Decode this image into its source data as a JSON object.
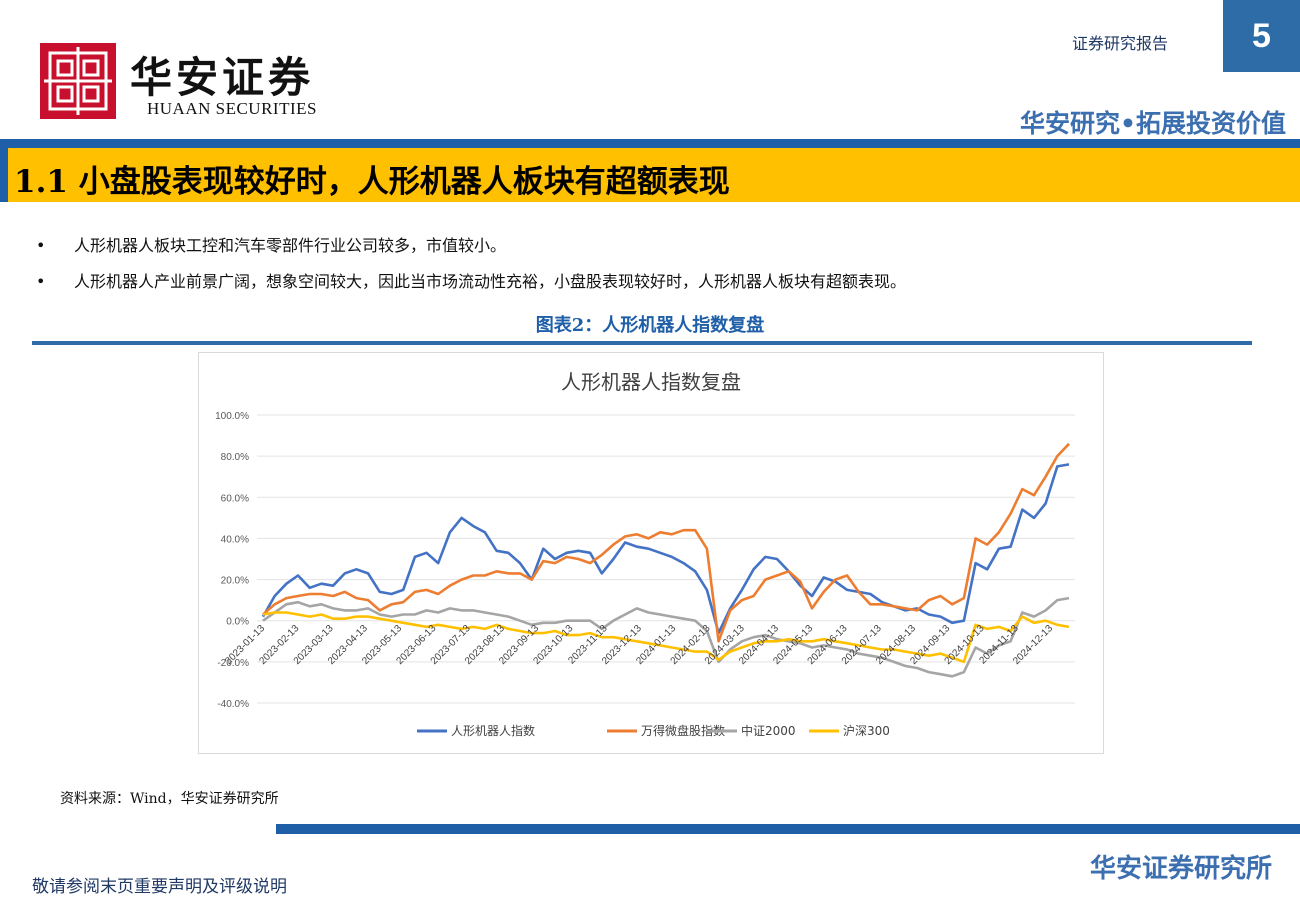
{
  "header": {
    "brand_cn": "华安证券",
    "brand_en": "HUAAN SECURITIES",
    "report_type": "证券研究报告",
    "page_number": "5",
    "slogan": "华安研究•拓展投资价值"
  },
  "section": {
    "title": "1.1 小盘股表现较好时，人形机器人板块有超额表现"
  },
  "bullets": [
    "人形机器人板块工控和汽车零部件行业公司较多，市值较小。",
    "人形机器人产业前景广阔，想象空间较大，因此当市场流动性充裕，小盘股表现较好时，人形机器人板块有超额表现。"
  ],
  "figure": {
    "caption": "图表2：人形机器人指数复盘",
    "source": "资料来源：Wind，华安证券研究所"
  },
  "chart_data": {
    "type": "line",
    "title": "人形机器人指数复盘",
    "y_tick_labels": [
      "100.0%",
      "80.0%",
      "60.0%",
      "40.0%",
      "20.0%",
      "0.0%",
      "-20.0%",
      "-40.0%"
    ],
    "x_tick_labels": [
      "2023-01-13",
      "2023-02-13",
      "2023-03-13",
      "2023-04-13",
      "2023-05-13",
      "2023-06-13",
      "2023-07-13",
      "2023-08-13",
      "2023-09-13",
      "2023-10-13",
      "2023-11-13",
      "2023-12-13",
      "2024-01-13",
      "2024-02-13",
      "2024-03-13",
      "2024-04-13",
      "2024-05-13",
      "2024-06-13",
      "2024-07-13",
      "2024-08-13",
      "2024-09-13",
      "2024-10-13",
      "2024-11-13",
      "2024-12-13"
    ],
    "ylim": [
      -40,
      100
    ],
    "grid": true,
    "legend": "bottom",
    "series": [
      {
        "name": "人形机器人指数",
        "color": "#4472c4",
        "values": [
          2,
          12,
          18,
          22,
          16,
          18,
          17,
          23,
          25,
          23,
          14,
          13,
          15,
          31,
          33,
          28,
          43,
          50,
          46,
          43,
          34,
          33,
          28,
          20,
          35,
          30,
          33,
          34,
          33,
          23,
          30,
          38,
          36,
          35,
          33,
          31,
          28,
          24,
          15,
          -6,
          6,
          15,
          25,
          31,
          30,
          24,
          17,
          12,
          21,
          19,
          15,
          14,
          13,
          9,
          7,
          5,
          6,
          3,
          2,
          -1,
          0,
          28,
          25,
          35,
          36,
          54,
          50,
          57,
          75,
          76
        ]
      },
      {
        "name": "万得微盘股指数",
        "color": "#ed7d31",
        "values": [
          3,
          8,
          11,
          12,
          13,
          13,
          12,
          14,
          11,
          10,
          5,
          8,
          9,
          14,
          15,
          13,
          17,
          20,
          22,
          22,
          24,
          23,
          23,
          20,
          29,
          28,
          31,
          30,
          28,
          32,
          37,
          41,
          42,
          40,
          43,
          42,
          44,
          44,
          35,
          -10,
          5,
          10,
          12,
          20,
          22,
          24,
          19,
          6,
          14,
          20,
          22,
          14,
          8,
          8,
          7,
          6,
          5,
          10,
          12,
          8,
          11,
          40,
          37,
          43,
          52,
          64,
          61,
          70,
          80,
          86
        ]
      },
      {
        "name": "中证2000",
        "color": "#a5a5a5",
        "values": [
          0,
          4,
          8,
          9,
          7,
          8,
          6,
          5,
          5,
          6,
          3,
          2,
          3,
          3,
          5,
          4,
          6,
          5,
          5,
          4,
          3,
          2,
          0,
          -2,
          -1,
          -1,
          0,
          0,
          0,
          -4,
          0,
          3,
          6,
          4,
          3,
          2,
          1,
          0,
          -5,
          -20,
          -14,
          -10,
          -8,
          -7,
          -9,
          -10,
          -11,
          -13,
          -12,
          -13,
          -14,
          -16,
          -17,
          -18,
          -20,
          -22,
          -23,
          -25,
          -26,
          -27,
          -25,
          -13,
          -16,
          -12,
          -10,
          4,
          2,
          5,
          10,
          11
        ]
      },
      {
        "name": "沪深300",
        "color": "#ffc000",
        "values": [
          3,
          4,
          4,
          3,
          2,
          3,
          1,
          1,
          2,
          2,
          1,
          0,
          -1,
          -2,
          -3,
          -2,
          -3,
          -4,
          -3,
          -4,
          -2,
          -4,
          -5,
          -6,
          -6,
          -5,
          -7,
          -7,
          -6,
          -8,
          -8,
          -9,
          -10,
          -11,
          -12,
          -13,
          -14,
          -15,
          -15,
          -19,
          -15,
          -13,
          -11,
          -10,
          -10,
          -9,
          -10,
          -10,
          -9,
          -10,
          -11,
          -12,
          -13,
          -14,
          -14,
          -15,
          -16,
          -17,
          -16,
          -18,
          -20,
          -2,
          -4,
          -3,
          -5,
          2,
          -1,
          0,
          -2,
          -3
        ]
      }
    ]
  }
}
